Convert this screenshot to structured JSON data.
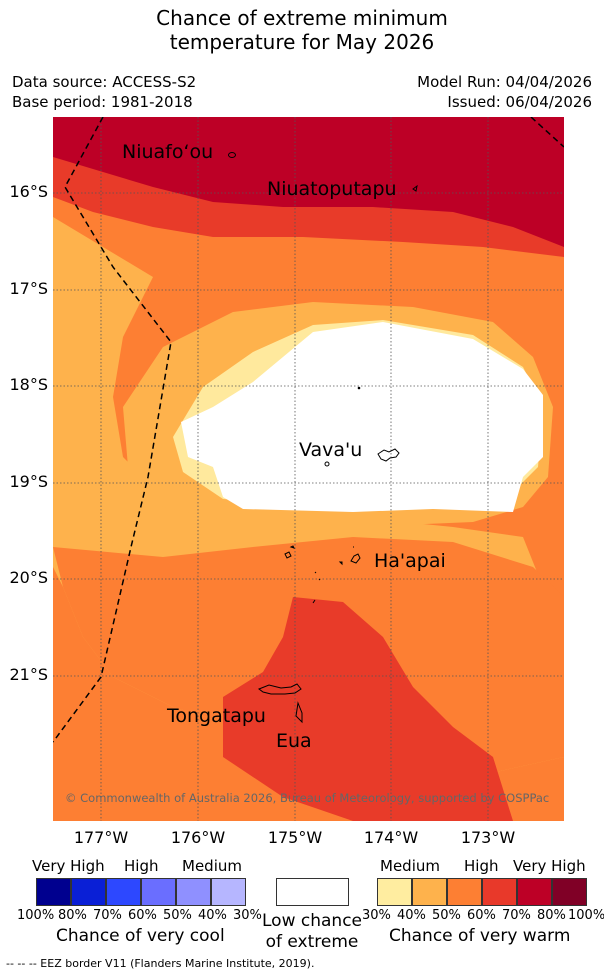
{
  "title_line1": "Chance of extreme minimum",
  "title_line2": "temperature for May 2026",
  "header": {
    "data_source": "Data source: ACCESS-S2",
    "base_period": "Base period: 1981-2018",
    "model_run": "Model Run: 04/04/2026",
    "issued": "Issued: 06/04/2026"
  },
  "map": {
    "lat_labels": [
      "16°S",
      "17°S",
      "18°S",
      "19°S",
      "20°S",
      "21°S"
    ],
    "lon_labels": [
      "177°W",
      "176°W",
      "175°W",
      "174°W",
      "173°W"
    ],
    "places": {
      "niuafoou": "Niuafoʻou",
      "niuatoputapu": "Niuatoputapu",
      "vavau": "Vava'u",
      "haapai": "Ha'apai",
      "tongatapu": "Tongatapu",
      "eua": "Eua"
    },
    "copyright": "© Commonwealth of Australia 2026, Bureau of Meteorology, supported by COSPPac",
    "colors": {
      "warm_80": "#bd0026",
      "warm_70": "#e83b29",
      "warm_60": "#fd7f33",
      "warm_50": "#feb24c",
      "warm_40": "#ffe99d",
      "white": "#ffffff"
    }
  },
  "legend": {
    "cool": {
      "levels": [
        "Very High",
        "High",
        "Medium"
      ],
      "ticks": [
        "100%",
        "80%",
        "70%",
        "60%",
        "50%",
        "40%",
        "30%"
      ],
      "caption": "Chance of very cool",
      "colors": [
        "#00008f",
        "#0a1fd6",
        "#2d48ff",
        "#6a6eff",
        "#8f90ff",
        "#b6b6ff"
      ]
    },
    "neutral": {
      "caption_line1": "Low chance",
      "caption_line2": "of extreme"
    },
    "warm": {
      "levels": [
        "Medium",
        "High",
        "Very High"
      ],
      "ticks": [
        "30%",
        "40%",
        "50%",
        "60%",
        "70%",
        "80%",
        "100%"
      ],
      "caption": "Chance of very warm",
      "colors": [
        "#ffeda0",
        "#feb24c",
        "#fd7f33",
        "#e8392a",
        "#bd0026",
        "#800026"
      ]
    }
  },
  "footnote": "-- -- -- EEZ border V11 (Flanders Marine Institute, 2019)."
}
